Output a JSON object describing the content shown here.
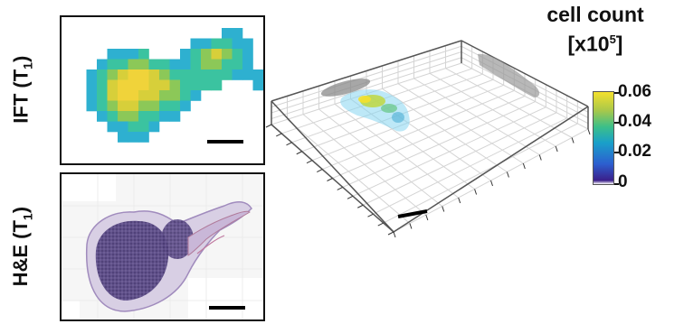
{
  "panels": {
    "ift": {
      "label_main": "IFT (T",
      "label_sub": "1",
      "label_close": ")"
    },
    "he": {
      "label_main": "H&E (T",
      "label_sub": "1",
      "label_close": ")"
    }
  },
  "colorbar": {
    "title_line1": "cell count",
    "title_prefix": "[x10",
    "title_exp": "5",
    "title_suffix": "]",
    "ticks": [
      "0.06",
      "0.04",
      "0.02",
      "0"
    ],
    "colors": [
      "#3b1f8a",
      "#2c5fcf",
      "#1aa0c9",
      "#3bbf8a",
      "#a9c84a",
      "#f4e02d"
    ]
  }
}
